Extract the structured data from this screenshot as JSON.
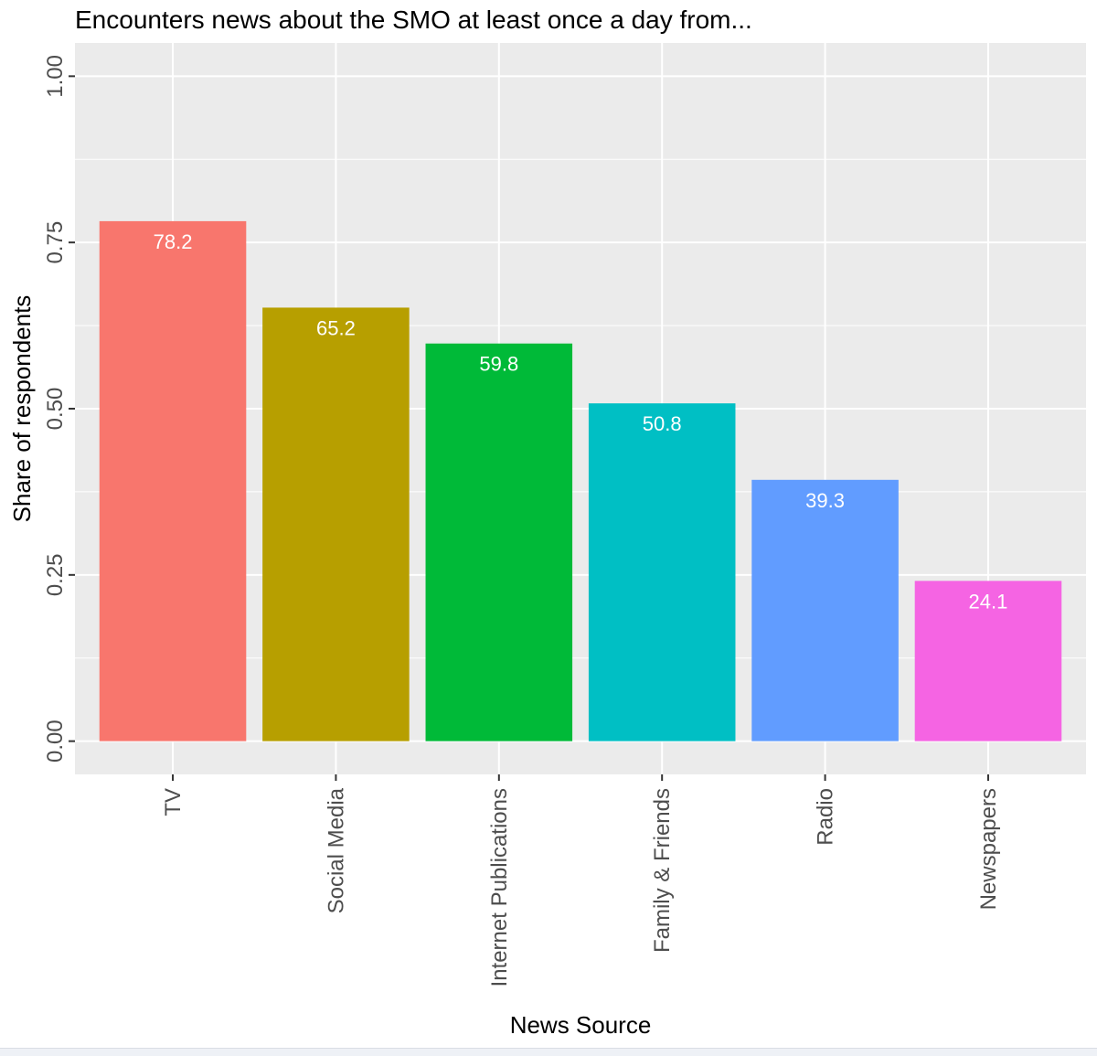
{
  "chart_data": {
    "type": "bar",
    "title": "Encounters news about the SMO at least once a day from...",
    "xlabel": "News Source",
    "ylabel": "Share of respondents",
    "categories": [
      "TV",
      "Social Media",
      "Internet Publications",
      "Family & Friends",
      "Radio",
      "Newspapers"
    ],
    "values": [
      0.782,
      0.652,
      0.598,
      0.508,
      0.393,
      0.241
    ],
    "data_labels": [
      "78.2",
      "65.2",
      "59.8",
      "50.8",
      "39.3",
      "24.1"
    ],
    "colors": [
      "#F8766D",
      "#B79F00",
      "#00BA38",
      "#00BFC4",
      "#619CFF",
      "#F564E3"
    ],
    "ylim": [
      -0.05,
      1.05
    ],
    "yticks": [
      0.0,
      0.25,
      0.5,
      0.75,
      1.0
    ],
    "ytick_labels": [
      "0.00",
      "0.25",
      "0.50",
      "0.75",
      "1.00"
    ],
    "grid": true,
    "legend": "none",
    "panel_background": "#EBEBEB",
    "grid_color": "#FFFFFF"
  }
}
